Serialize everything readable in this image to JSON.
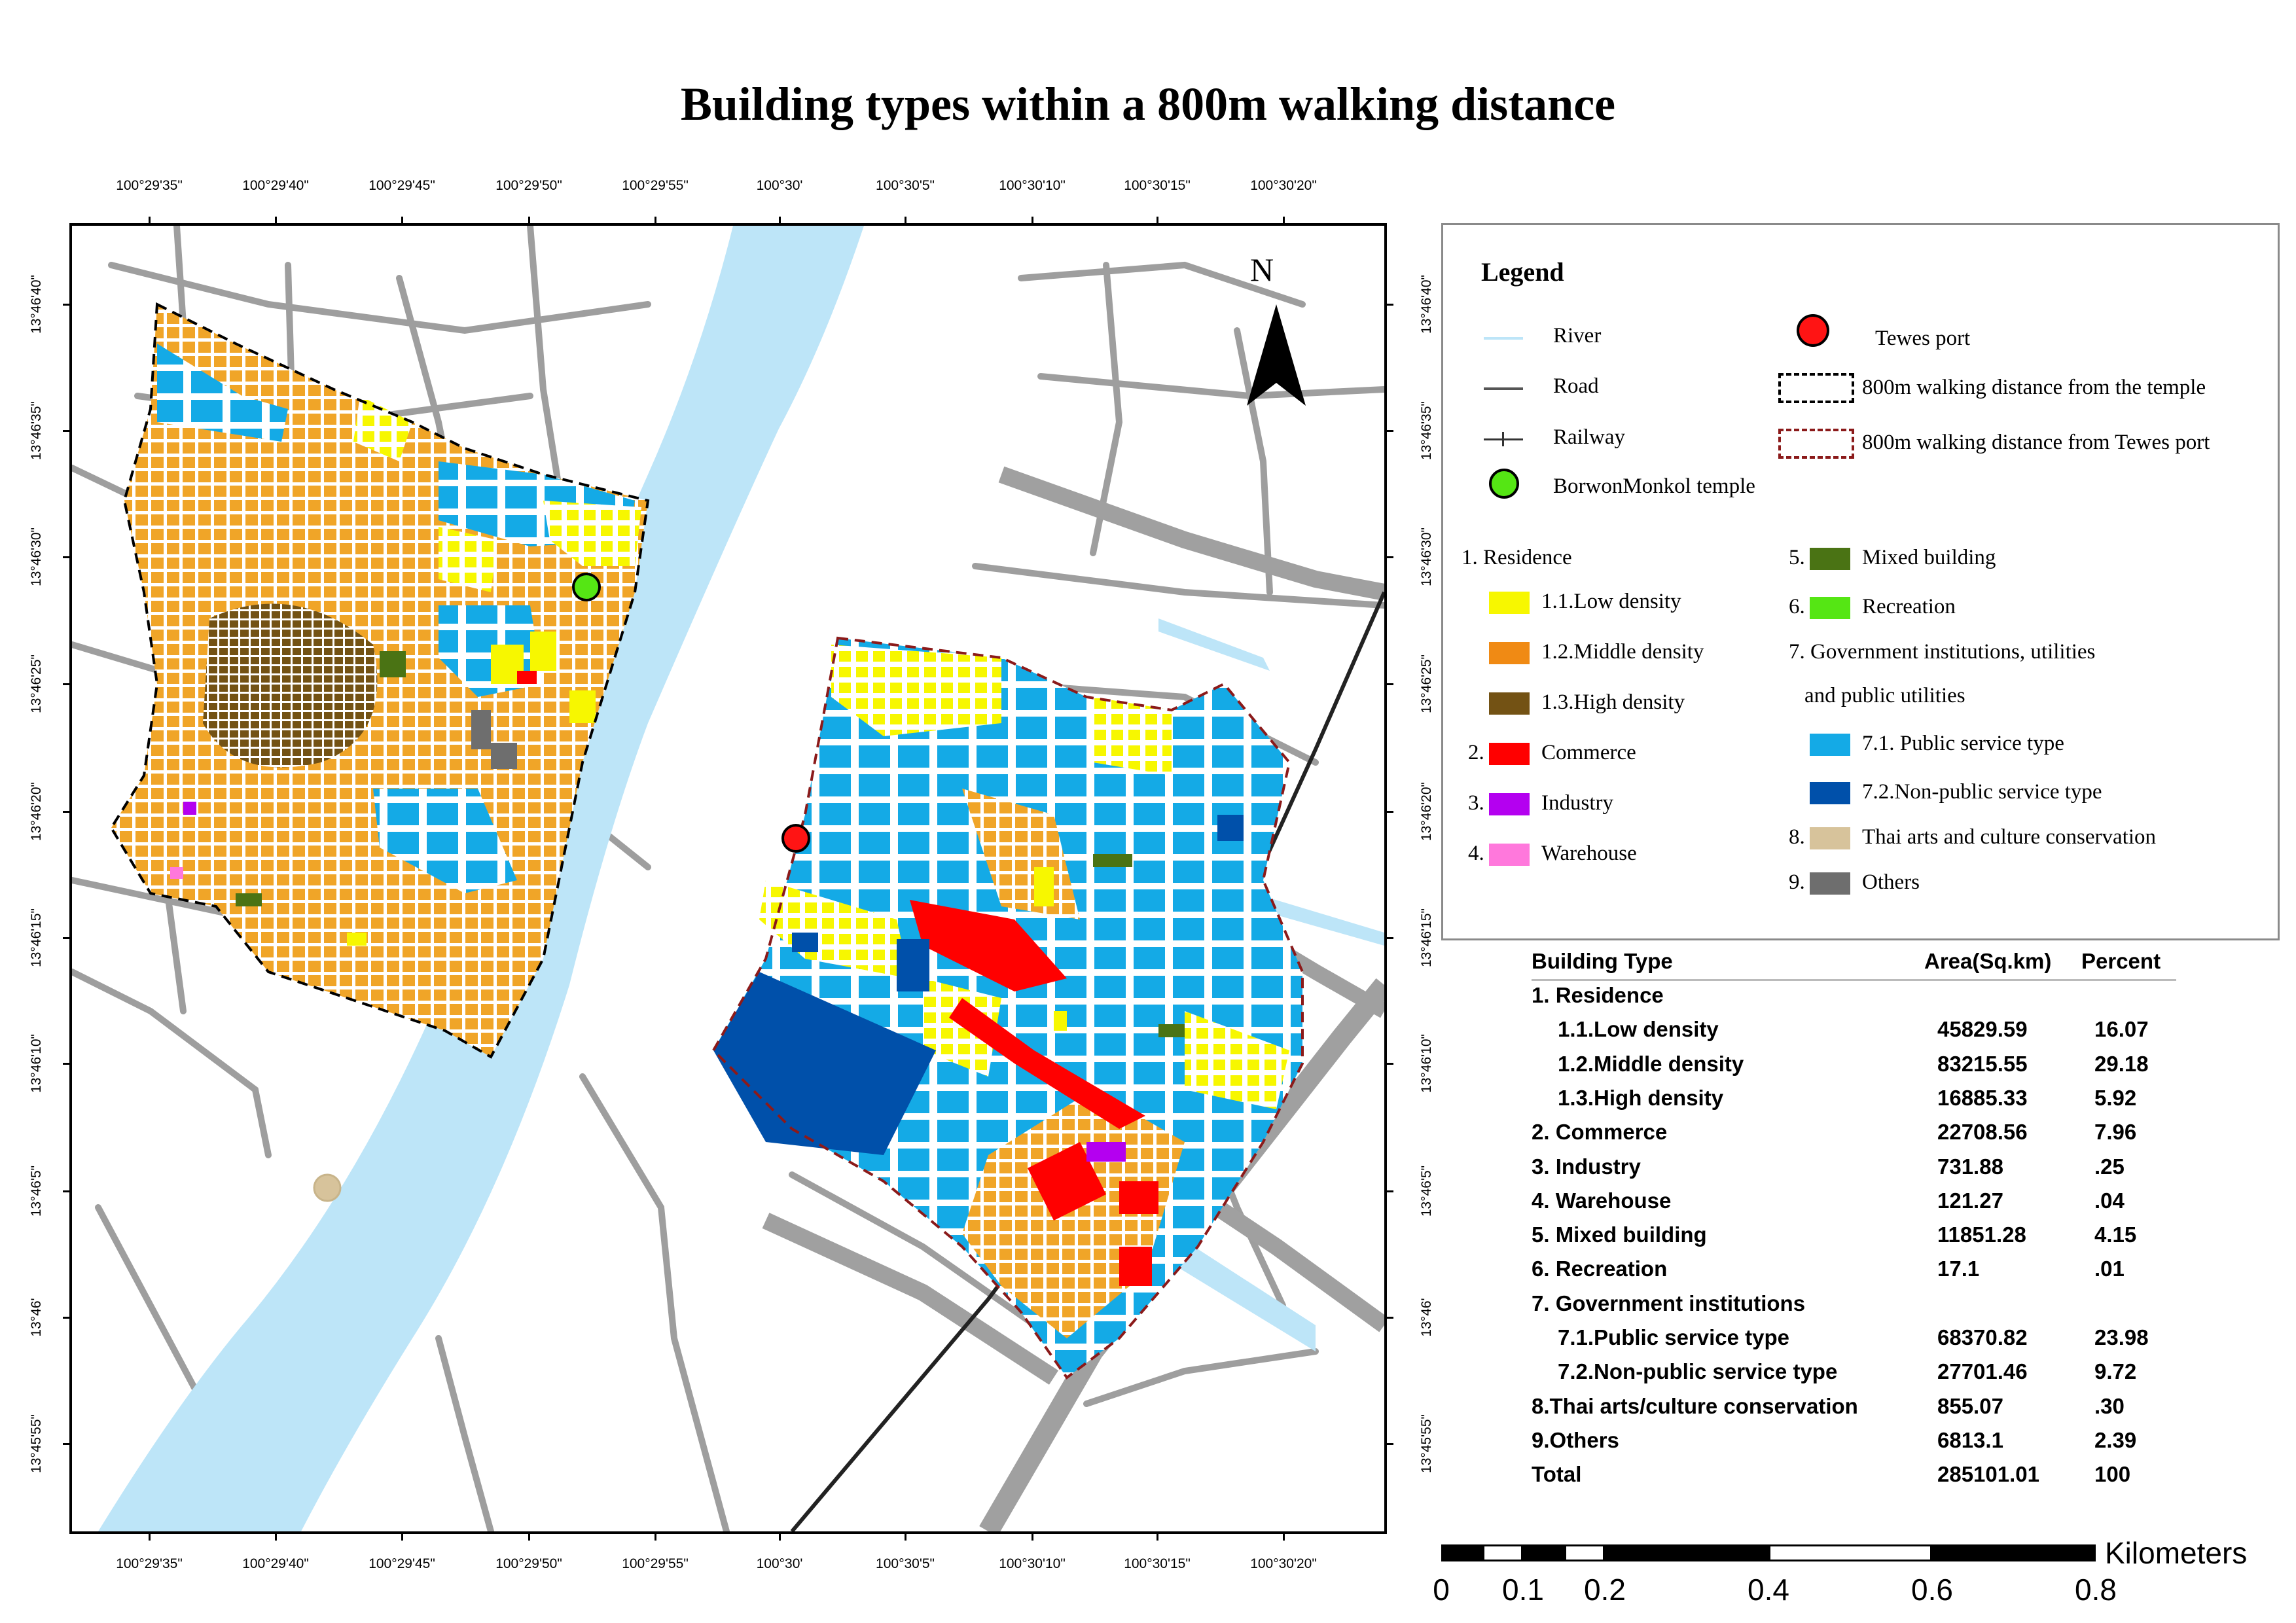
{
  "title": "Building types within a 800m walking distance",
  "north_label": "N",
  "lon_ticks": [
    "100°29'35\"",
    "100°29'40\"",
    "100°29'45\"",
    "100°29'50\"",
    "100°29'55\"",
    "100°30'",
    "100°30'5\"",
    "100°30'10\"",
    "100°30'15\"",
    "100°30'20\""
  ],
  "lat_ticks": [
    "13°46'40\"",
    "13°46'35\"",
    "13°46'30\"",
    "13°46'25\"",
    "13°46'20\"",
    "13°46'15\"",
    "13°46'10\"",
    "13°46'5\"",
    "13°46'",
    "13°45'55\""
  ],
  "legend": {
    "title": "Legend",
    "river": "River",
    "road": "Road",
    "railway": "Railway",
    "temple": "BorwonMonkol temple",
    "port": "Tewes port",
    "walk_temple": "800m walking distance from the temple",
    "walk_port": "800m walking distance from Tewes port",
    "residence_header": "1. Residence",
    "low": "1.1.Low density",
    "middle": "1.2.Middle density",
    "high": "1.3.High density",
    "commerce_num": "2.",
    "commerce": "Commerce",
    "industry_num": "3.",
    "industry": "Industry",
    "warehouse_num": "4.",
    "warehouse": "Warehouse",
    "mixed_num": "5.",
    "mixed": "Mixed building",
    "recreation_num": "6.",
    "recreation": "Recreation",
    "gov_line1": "7. Government institutions, utilities",
    "gov_line2": "and public utilities",
    "public": "7.1. Public service type",
    "nonpublic": "7.2.Non-public service type",
    "thai_num": "8.",
    "thai": "Thai arts and culture conservation",
    "others_num": "9.",
    "others": "Others"
  },
  "colors": {
    "river": "#bde5f8",
    "road": "#9e9e9e",
    "low": "#f7f700",
    "middle": "#f08a14",
    "middle_map": "#f0a528",
    "high": "#735214",
    "commerce": "#ff0000",
    "industry": "#b400f0",
    "warehouse": "#ff78dc",
    "mixed": "#4a7314",
    "recreation": "#55e614",
    "public": "#14aae6",
    "nonpublic": "#0050aa",
    "thai": "#d7c39b",
    "others": "#6e6e6e",
    "temple": "#55e614",
    "port": "#ff1414"
  },
  "table": {
    "headers": [
      "Building Type",
      "Area(Sq.km)",
      "Percent"
    ],
    "rows": [
      {
        "type": "1. Residence",
        "area": "",
        "percent": ""
      },
      {
        "type": "1.1.Low density",
        "area": "45829.59",
        "percent": "16.07"
      },
      {
        "type": "1.2.Middle density",
        "area": "83215.55",
        "percent": "29.18"
      },
      {
        "type": "1.3.High density",
        "area": "16885.33",
        "percent": "5.92"
      },
      {
        "type": "2. Commerce",
        "area": "22708.56",
        "percent": "7.96"
      },
      {
        "type": "3. Industry",
        "area": "731.88",
        "percent": ".25"
      },
      {
        "type": "4. Warehouse",
        "area": "121.27",
        "percent": ".04"
      },
      {
        "type": "5. Mixed building",
        "area": "11851.28",
        "percent": "4.15"
      },
      {
        "type": "6. Recreation",
        "area": "17.1",
        "percent": ".01"
      },
      {
        "type": "7. Government institutions",
        "area": "",
        "percent": ""
      },
      {
        "type": "7.1.Public service type",
        "area": "68370.82",
        "percent": "23.98"
      },
      {
        "type": "7.2.Non-public service type",
        "area": "27701.46",
        "percent": "9.72"
      },
      {
        "type": "8.Thai arts/culture conservation",
        "area": "855.07",
        "percent": ".30"
      },
      {
        "type": "9.Others",
        "area": "6813.1",
        "percent": "2.39"
      },
      {
        "type": "Total",
        "area": "285101.01",
        "percent": "100"
      }
    ]
  },
  "scale": {
    "unit": "Kilometers",
    "labels": [
      "0",
      "0.1",
      "0.2",
      "0.4",
      "0.6",
      "0.8"
    ]
  }
}
